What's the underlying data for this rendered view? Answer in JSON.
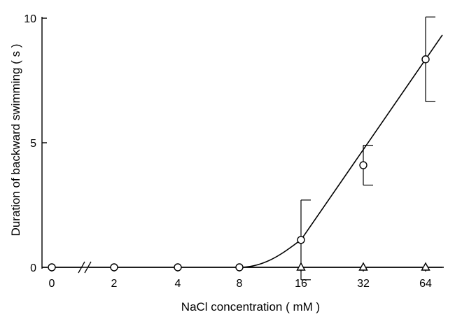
{
  "chart_data": {
    "type": "scatter",
    "title": "",
    "xlabel": "NaCl concentration ( mM )",
    "ylabel": "Duration of backward swimming ( s )",
    "x_categories": [
      "0",
      "2",
      "4",
      "8",
      "16",
      "32",
      "64"
    ],
    "x_axis_break": "between 0 and 2",
    "ylim": [
      0,
      10
    ],
    "y_ticks": [
      "0",
      "5",
      "10"
    ],
    "grid": false,
    "legend": "none",
    "series": [
      {
        "marker": "circle",
        "points": [
          {
            "x": "0",
            "y": 0,
            "err": 0
          },
          {
            "x": "2",
            "y": 0,
            "err": 0
          },
          {
            "x": "4",
            "y": 0,
            "err": 0
          },
          {
            "x": "8",
            "y": 0,
            "err": 0
          },
          {
            "x": "16",
            "y": 1.1,
            "err": 1.6
          },
          {
            "x": "32",
            "y": 4.1,
            "err": 0.8
          },
          {
            "x": "64",
            "y": 8.35,
            "err": 1.7
          }
        ],
        "fit_curve": true
      },
      {
        "marker": "triangle",
        "points": [
          {
            "x": "16",
            "y": 0
          },
          {
            "x": "32",
            "y": 0
          },
          {
            "x": "64",
            "y": 0
          }
        ],
        "fit_curve": false
      }
    ]
  }
}
